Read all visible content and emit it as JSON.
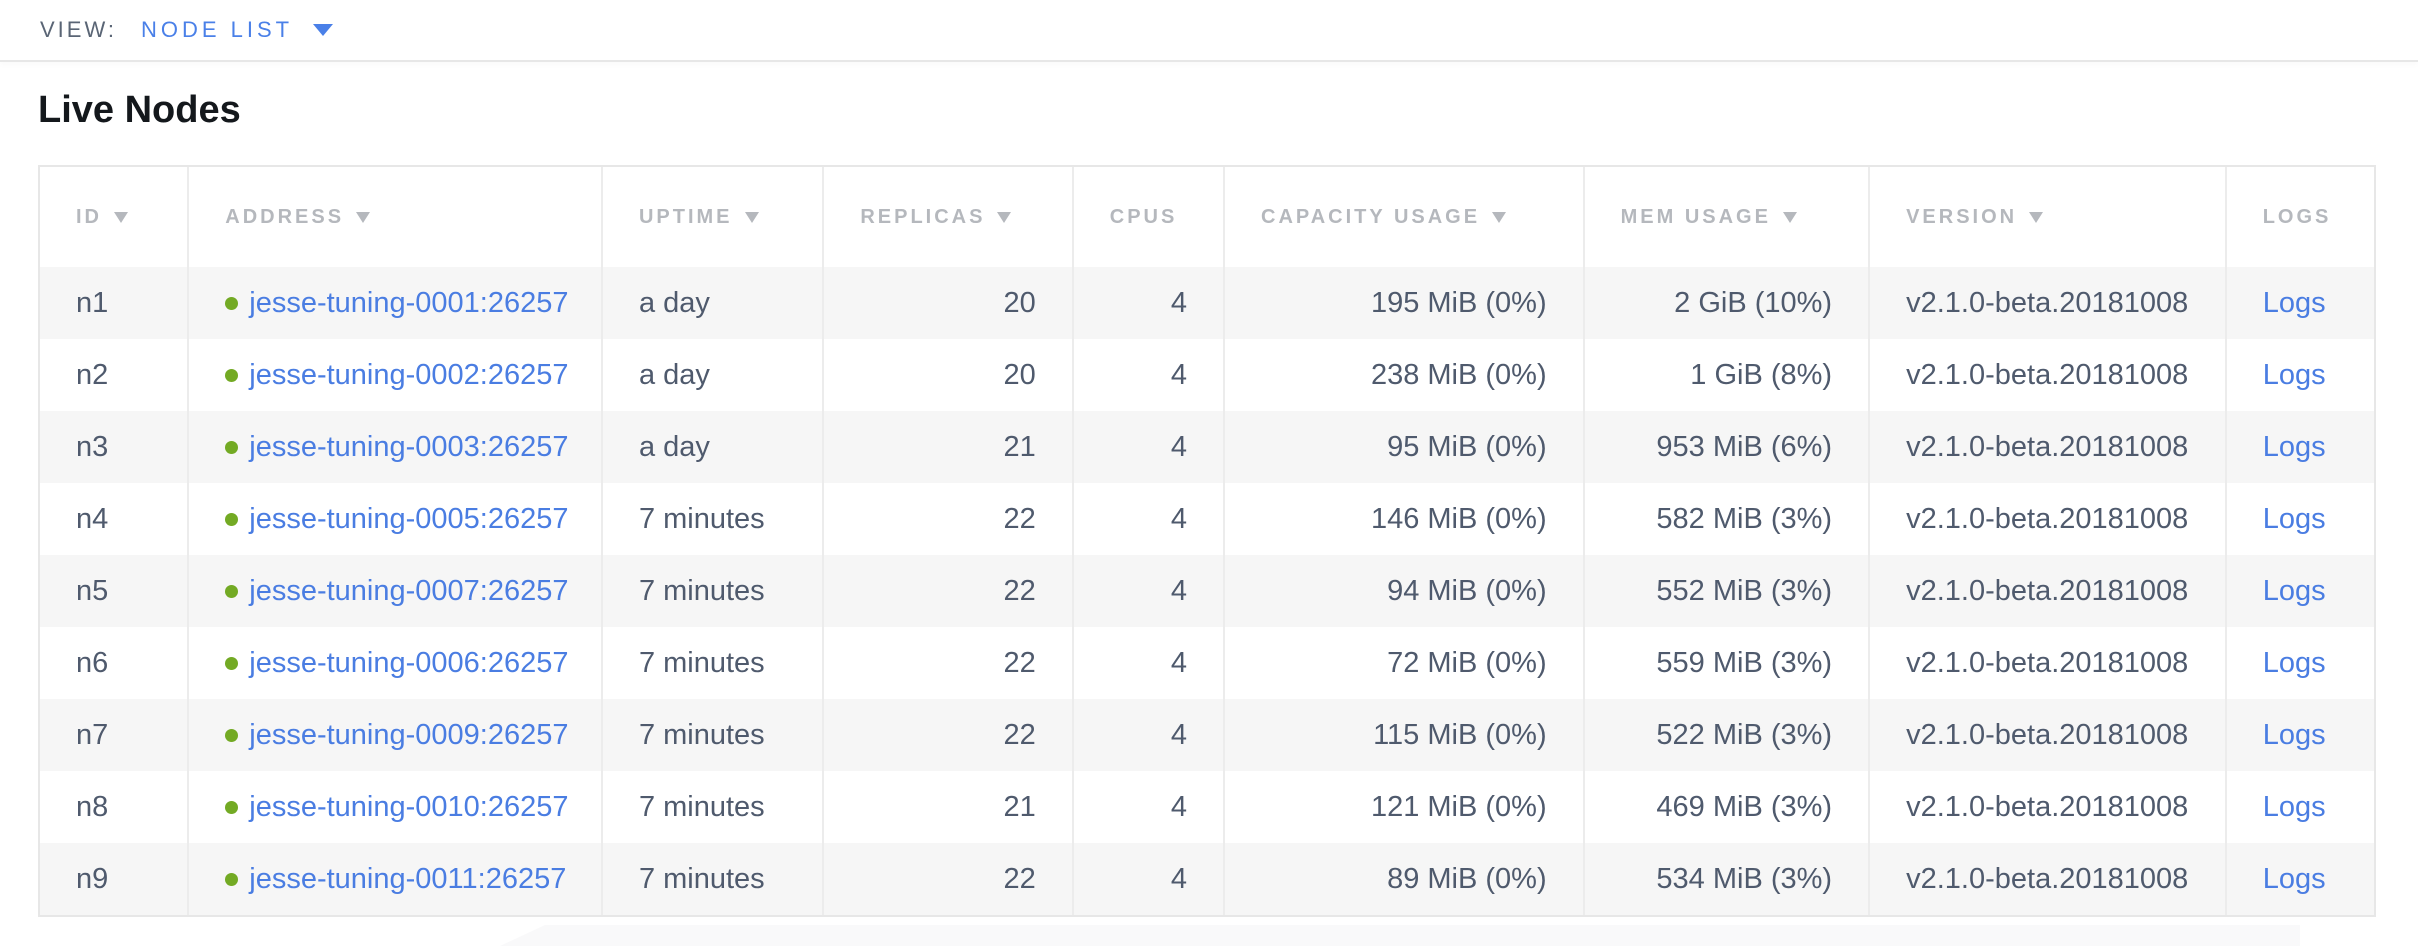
{
  "view_bar": {
    "label": "VIEW:",
    "selected": "NODE LIST"
  },
  "page": {
    "title": "Live Nodes"
  },
  "colors": {
    "accent_blue": "#4a7de2",
    "view_blue": "#4a80e8",
    "live_green": "#73aa24",
    "header_gray": "#b5b8bd",
    "cell_text": "#4f5a6d",
    "stripe_gray": "#f6f6f6",
    "border_gray": "#ececec"
  },
  "table": {
    "columns": [
      {
        "key": "id",
        "label": "ID",
        "sortable": true,
        "sorted": true,
        "align": "left"
      },
      {
        "key": "address",
        "label": "ADDRESS",
        "sortable": true,
        "sorted": true,
        "align": "left"
      },
      {
        "key": "uptime",
        "label": "UPTIME",
        "sortable": true,
        "sorted": true,
        "align": "left"
      },
      {
        "key": "replicas",
        "label": "REPLICAS",
        "sortable": true,
        "sorted": true,
        "align": "right"
      },
      {
        "key": "cpus",
        "label": "CPUS",
        "sortable": true,
        "sorted": false,
        "align": "right"
      },
      {
        "key": "capacity",
        "label": "CAPACITY USAGE",
        "sortable": true,
        "sorted": true,
        "align": "right"
      },
      {
        "key": "mem",
        "label": "MEM USAGE",
        "sortable": true,
        "sorted": true,
        "align": "right"
      },
      {
        "key": "version",
        "label": "VERSION",
        "sortable": true,
        "sorted": true,
        "align": "left"
      },
      {
        "key": "logs",
        "label": "LOGS",
        "sortable": false,
        "sorted": false,
        "align": "left"
      }
    ],
    "rows": [
      {
        "id": "n1",
        "status": "live",
        "address": "jesse-tuning-0001:26257",
        "uptime": "a day",
        "replicas": "20",
        "cpus": "4",
        "capacity": "195 MiB (0%)",
        "mem": "2 GiB (10%)",
        "version": "v2.1.0-beta.20181008",
        "logs": "Logs"
      },
      {
        "id": "n2",
        "status": "live",
        "address": "jesse-tuning-0002:26257",
        "uptime": "a day",
        "replicas": "20",
        "cpus": "4",
        "capacity": "238 MiB (0%)",
        "mem": "1 GiB (8%)",
        "version": "v2.1.0-beta.20181008",
        "logs": "Logs"
      },
      {
        "id": "n3",
        "status": "live",
        "address": "jesse-tuning-0003:26257",
        "uptime": "a day",
        "replicas": "21",
        "cpus": "4",
        "capacity": "95 MiB (0%)",
        "mem": "953 MiB (6%)",
        "version": "v2.1.0-beta.20181008",
        "logs": "Logs"
      },
      {
        "id": "n4",
        "status": "live",
        "address": "jesse-tuning-0005:26257",
        "uptime": "7 minutes",
        "replicas": "22",
        "cpus": "4",
        "capacity": "146 MiB (0%)",
        "mem": "582 MiB (3%)",
        "version": "v2.1.0-beta.20181008",
        "logs": "Logs"
      },
      {
        "id": "n5",
        "status": "live",
        "address": "jesse-tuning-0007:26257",
        "uptime": "7 minutes",
        "replicas": "22",
        "cpus": "4",
        "capacity": "94 MiB (0%)",
        "mem": "552 MiB (3%)",
        "version": "v2.1.0-beta.20181008",
        "logs": "Logs"
      },
      {
        "id": "n6",
        "status": "live",
        "address": "jesse-tuning-0006:26257",
        "uptime": "7 minutes",
        "replicas": "22",
        "cpus": "4",
        "capacity": "72 MiB (0%)",
        "mem": "559 MiB (3%)",
        "version": "v2.1.0-beta.20181008",
        "logs": "Logs"
      },
      {
        "id": "n7",
        "status": "live",
        "address": "jesse-tuning-0009:26257",
        "uptime": "7 minutes",
        "replicas": "22",
        "cpus": "4",
        "capacity": "115 MiB (0%)",
        "mem": "522 MiB (3%)",
        "version": "v2.1.0-beta.20181008",
        "logs": "Logs"
      },
      {
        "id": "n8",
        "status": "live",
        "address": "jesse-tuning-0010:26257",
        "uptime": "7 minutes",
        "replicas": "21",
        "cpus": "4",
        "capacity": "121 MiB (0%)",
        "mem": "469 MiB (3%)",
        "version": "v2.1.0-beta.20181008",
        "logs": "Logs"
      },
      {
        "id": "n9",
        "status": "live",
        "address": "jesse-tuning-0011:26257",
        "uptime": "7 minutes",
        "replicas": "22",
        "cpus": "4",
        "capacity": "89 MiB (0%)",
        "mem": "534 MiB (3%)",
        "version": "v2.1.0-beta.20181008",
        "logs": "Logs"
      }
    ]
  }
}
